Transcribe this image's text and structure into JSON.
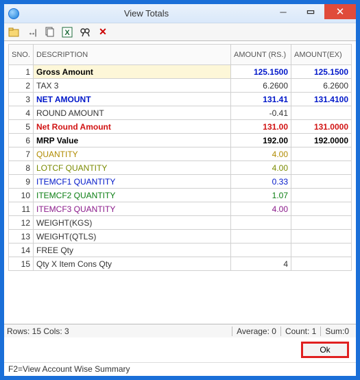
{
  "window": {
    "title": "View Totals"
  },
  "columns": {
    "sno": "SNO.",
    "desc": "DESCRIPTION",
    "amt1": "AMOUNT (RS.)",
    "amt2": "AMOUNT(EX)"
  },
  "rows": [
    {
      "sno": "1",
      "desc": "Gross Amount",
      "amt1": "125.1500",
      "amt2": "125.1500",
      "desc_color": "#000000",
      "bold": true,
      "amt_color": "#0017c9",
      "highlight": true
    },
    {
      "sno": "2",
      "desc": "TAX 3",
      "amt1": "6.2600",
      "amt2": "6.2600",
      "desc_color": "#333333",
      "bold": false,
      "amt_color": "#333333"
    },
    {
      "sno": "3",
      "desc": "NET AMOUNT",
      "amt1": "131.41",
      "amt2": "131.4100",
      "desc_color": "#0017c9",
      "bold": true,
      "amt_color": "#0017c9"
    },
    {
      "sno": "4",
      "desc": "ROUND AMOUNT",
      "amt1": "-0.41",
      "amt2": "",
      "desc_color": "#333333",
      "bold": false,
      "amt_color": "#333333"
    },
    {
      "sno": "5",
      "desc": "Net Round Amount",
      "amt1": "131.00",
      "amt2": "131.0000",
      "desc_color": "#d11313",
      "bold": true,
      "amt_color": "#d11313"
    },
    {
      "sno": "6",
      "desc": "MRP Value",
      "amt1": "192.00",
      "amt2": "192.0000",
      "desc_color": "#000000",
      "bold": true,
      "amt_color": "#000000"
    },
    {
      "sno": "7",
      "desc": "QUANTITY",
      "amt1": "4.00",
      "amt2": "",
      "desc_color": "#b08b00",
      "bold": false,
      "amt_color": "#b08b00"
    },
    {
      "sno": "8",
      "desc": "LOTCF   QUANTITY",
      "amt1": "4.00",
      "amt2": "",
      "desc_color": "#7a8a00",
      "bold": false,
      "amt_color": "#7a8a00"
    },
    {
      "sno": "9",
      "desc": "ITEMCF1   QUANTITY",
      "amt1": "0.33",
      "amt2": "",
      "desc_color": "#0017c9",
      "bold": false,
      "amt_color": "#0017c9"
    },
    {
      "sno": "10",
      "desc": "ITEMCF2   QUANTITY",
      "amt1": "1.07",
      "amt2": "",
      "desc_color": "#0a7d12",
      "bold": false,
      "amt_color": "#0a7d12"
    },
    {
      "sno": "11",
      "desc": "ITEMCF3   QUANTITY",
      "amt1": "4.00",
      "amt2": "",
      "desc_color": "#8a1a8a",
      "bold": false,
      "amt_color": "#8a1a8a"
    },
    {
      "sno": "12",
      "desc": "WEIGHT(KGS)",
      "amt1": "",
      "amt2": "",
      "desc_color": "#333333",
      "bold": false,
      "amt_color": "#333333"
    },
    {
      "sno": "13",
      "desc": "WEIGHT(QTLS)",
      "amt1": "",
      "amt2": "",
      "desc_color": "#333333",
      "bold": false,
      "amt_color": "#333333"
    },
    {
      "sno": "14",
      "desc": "FREE Qty",
      "amt1": "",
      "amt2": "",
      "desc_color": "#333333",
      "bold": false,
      "amt_color": "#333333"
    },
    {
      "sno": "15",
      "desc": "Qty X Item Cons Qty",
      "amt1": "4",
      "amt2": "",
      "desc_color": "#333333",
      "bold": false,
      "amt_color": "#333333"
    }
  ],
  "status": {
    "rows_cols": "Rows: 15  Cols: 3",
    "average": "Average: 0",
    "count": "Count: 1",
    "sum": "Sum:0"
  },
  "ok_label": "Ok",
  "footnote": "F2=View Account Wise Summary"
}
